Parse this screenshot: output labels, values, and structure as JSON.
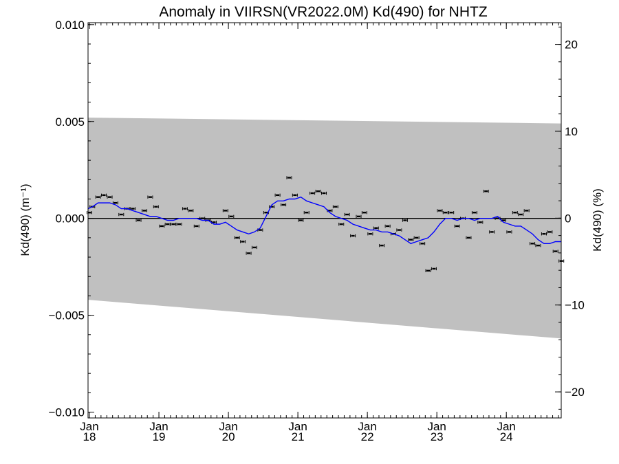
{
  "chart_data": {
    "type": "scatter",
    "title": "Anomaly in VIIRSN(VR2022.0M) Kd(490) for NHTZ",
    "ylabel_left": "Kd(490) (m⁻¹)",
    "ylabel_right": "Kd(490) (%)",
    "y_ticks_left": [
      "0.010",
      "0.005",
      "0.000",
      "−0.005",
      "−0.010"
    ],
    "y_tick_values_left": [
      0.01,
      0.005,
      0.0,
      -0.005,
      -0.01
    ],
    "y_ticks_right": [
      "20",
      "10",
      "0",
      "−10",
      "−20"
    ],
    "y_tick_values_right": [
      20,
      10,
      0,
      -10,
      -20
    ],
    "x_ticks": [
      {
        "month": "Jan",
        "year": "18",
        "value": 2018.0
      },
      {
        "month": "Jan",
        "year": "19",
        "value": 2019.0
      },
      {
        "month": "Jan",
        "year": "20",
        "value": 2020.0
      },
      {
        "month": "Jan",
        "year": "21",
        "value": 2021.0
      },
      {
        "month": "Jan",
        "year": "22",
        "value": 2022.0
      },
      {
        "month": "Jan",
        "year": "23",
        "value": 2023.0
      },
      {
        "month": "Jan",
        "year": "24",
        "value": 2024.0
      }
    ],
    "xlim": [
      2017.98,
      2024.79
    ],
    "ylim_left": [
      -0.0103,
      0.0101
    ],
    "ylim_right": [
      -23,
      22.5
    ],
    "grid": false,
    "zero_line": true,
    "colors": {
      "band": "#c0c0c0",
      "points": "#000000",
      "smooth_line": "#0000ff",
      "zero_line": "#000000"
    },
    "band": {
      "x": [
        2017.98,
        2024.79
      ],
      "upper": [
        0.0052,
        0.0049
      ],
      "lower": [
        -0.0042,
        -0.0062
      ]
    },
    "points": {
      "x": [
        2018.0,
        2018.042,
        2018.125,
        2018.208,
        2018.292,
        2018.375,
        2018.458,
        2018.542,
        2018.625,
        2018.708,
        2018.792,
        2018.875,
        2018.958,
        2019.042,
        2019.125,
        2019.208,
        2019.292,
        2019.375,
        2019.458,
        2019.542,
        2019.625,
        2019.708,
        2019.792,
        2019.958,
        2020.042,
        2020.125,
        2020.208,
        2020.292,
        2020.375,
        2020.458,
        2020.542,
        2020.625,
        2020.708,
        2020.792,
        2020.875,
        2020.958,
        2021.042,
        2021.125,
        2021.208,
        2021.292,
        2021.375,
        2021.458,
        2021.542,
        2021.625,
        2021.708,
        2021.792,
        2021.875,
        2021.958,
        2022.042,
        2022.125,
        2022.208,
        2022.292,
        2022.375,
        2022.458,
        2022.542,
        2022.625,
        2022.708,
        2022.792,
        2022.875,
        2022.958,
        2023.042,
        2023.125,
        2023.208,
        2023.292,
        2023.375,
        2023.458,
        2023.542,
        2023.625,
        2023.708,
        2023.792,
        2023.875,
        2023.958,
        2024.042,
        2024.125,
        2024.208,
        2024.292,
        2024.375,
        2024.458,
        2024.542,
        2024.625,
        2024.708,
        2024.792
      ],
      "y": [
        0.0003,
        0.0006,
        0.0011,
        0.0012,
        0.0011,
        0.0008,
        0.0002,
        0.0005,
        0.0005,
        -0.0001,
        0.0004,
        0.0011,
        0.0006,
        -0.0004,
        -0.0003,
        -0.0003,
        -0.0003,
        0.0005,
        0.0004,
        -0.0004,
        0.0,
        -0.0001,
        -0.0002,
        0.0004,
        0.0001,
        -0.001,
        -0.0012,
        -0.0018,
        -0.0015,
        -0.0006,
        0.0003,
        0.0006,
        0.0012,
        0.0007,
        0.0021,
        0.0012,
        -0.0001,
        0.0003,
        0.0013,
        0.0014,
        0.0013,
        0.0004,
        0.0006,
        -0.0003,
        0.0002,
        -0.0009,
        0.0001,
        0.0003,
        -0.0008,
        -0.0005,
        -0.0014,
        -0.0004,
        -0.0008,
        -0.0006,
        -0.0001,
        -0.0011,
        -0.001,
        -0.0013,
        -0.0027,
        -0.0026,
        0.0004,
        0.0003,
        0.0003,
        -0.0004,
        0.0,
        -0.001,
        0.0003,
        -0.0002,
        0.0014,
        -0.0007,
        0.0,
        -0.0001,
        -0.0007,
        0.0003,
        0.0002,
        0.0004,
        -0.0013,
        -0.0014,
        -0.0008,
        -0.0007,
        -0.0017,
        -0.0022
      ]
    },
    "smooth_line": {
      "x": [
        2017.98,
        2018.042,
        2018.125,
        2018.208,
        2018.292,
        2018.375,
        2018.458,
        2018.542,
        2018.625,
        2018.708,
        2018.792,
        2018.875,
        2018.958,
        2019.042,
        2019.125,
        2019.208,
        2019.292,
        2019.375,
        2019.458,
        2019.542,
        2019.625,
        2019.708,
        2019.792,
        2019.875,
        2019.958,
        2020.042,
        2020.125,
        2020.208,
        2020.292,
        2020.375,
        2020.458,
        2020.542,
        2020.625,
        2020.708,
        2020.792,
        2020.875,
        2020.958,
        2021.042,
        2021.125,
        2021.208,
        2021.292,
        2021.375,
        2021.458,
        2021.542,
        2021.625,
        2021.708,
        2021.792,
        2021.875,
        2021.958,
        2022.042,
        2022.125,
        2022.208,
        2022.292,
        2022.375,
        2022.458,
        2022.542,
        2022.625,
        2022.708,
        2022.792,
        2022.875,
        2022.958,
        2023.042,
        2023.125,
        2023.208,
        2023.292,
        2023.375,
        2023.458,
        2023.542,
        2023.625,
        2023.708,
        2023.792,
        2023.875,
        2023.958,
        2024.042,
        2024.125,
        2024.208,
        2024.292,
        2024.375,
        2024.458,
        2024.542,
        2024.625,
        2024.708,
        2024.79
      ],
      "y": [
        0.0005,
        0.0006,
        0.0008,
        0.0008,
        0.0008,
        0.0007,
        0.0005,
        0.0005,
        0.0004,
        0.0003,
        0.0002,
        0.0001,
        0.0001,
        0.0,
        -0.0001,
        -0.0001,
        0.0,
        0.0,
        0.0,
        0.0,
        -0.0001,
        -0.0001,
        -0.0003,
        -0.0003,
        -0.0002,
        -0.0004,
        -0.0006,
        -0.0007,
        -0.0008,
        -0.0007,
        -0.0005,
        0.0001,
        0.0007,
        0.0009,
        0.0009,
        0.001,
        0.001,
        0.0011,
        0.0009,
        0.0008,
        0.0007,
        0.0006,
        0.0003,
        0.0001,
        0.0,
        -0.0001,
        -0.0003,
        -0.0004,
        -0.0005,
        -0.0006,
        -0.0006,
        -0.0007,
        -0.0007,
        -0.0008,
        -0.0009,
        -0.0011,
        -0.0013,
        -0.0012,
        -0.0011,
        -0.001,
        -0.0007,
        -0.0003,
        0.0,
        0.0,
        -0.0001,
        0.0,
        0.0,
        -0.0001,
        0.0,
        0.0,
        0.0,
        0.0001,
        -0.0002,
        -0.0003,
        -0.0004,
        -0.0004,
        -0.0006,
        -0.0008,
        -0.0011,
        -0.0013,
        -0.0013,
        -0.0012,
        -0.0012
      ]
    }
  }
}
